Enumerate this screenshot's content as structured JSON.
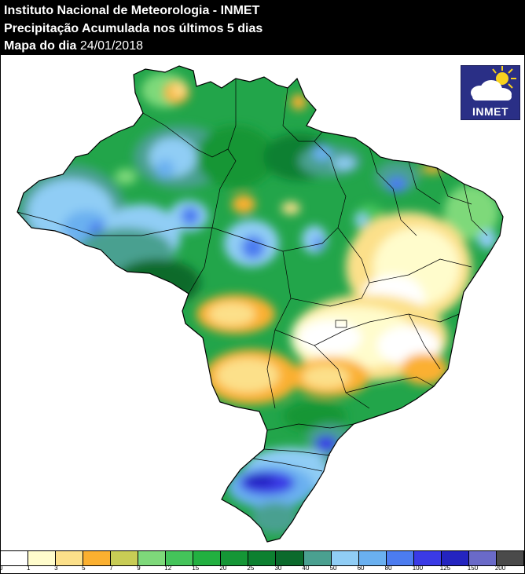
{
  "header": {
    "line1": "Instituto Nacional de Meteorologia - INMET",
    "line2": "Precipitação Acumulada nos últimos 5 dias",
    "line3_prefix": "Mapa do dia",
    "date": "24/01/2018"
  },
  "logo": {
    "text": "INMET",
    "icon": "sun-cloud-icon"
  },
  "legend": {
    "ticks": [
      "0",
      "1",
      "3",
      "5",
      "7",
      "9",
      "12",
      "15",
      "20",
      "25",
      "30",
      "40",
      "50",
      "60",
      "80",
      "100",
      "125",
      "150",
      "200"
    ],
    "colors": [
      "#ffffff",
      "#fffccc",
      "#fce08a",
      "#fbb030",
      "#c8cc55",
      "#7ed97a",
      "#44c45a",
      "#22b040",
      "#159636",
      "#0d8030",
      "#0b6a2c",
      "#4aa090",
      "#90cdf5",
      "#6ab0f0",
      "#4c7cf0",
      "#3a3ae6",
      "#2424c0",
      "#6a6ac8",
      "#4a4a4a"
    ]
  },
  "colors": {
    "header_bg": "#000000",
    "header_text": "#ffffff"
  }
}
